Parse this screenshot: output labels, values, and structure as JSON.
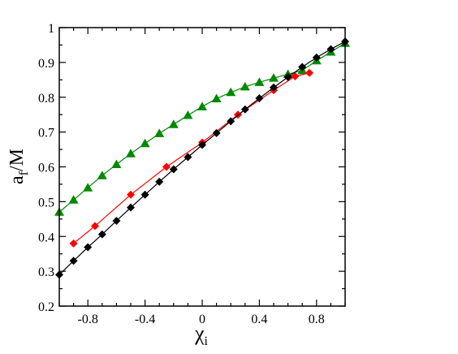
{
  "chart_data": {
    "type": "line",
    "title": "",
    "xlabel": "χ",
    "xlabel_sub": "i",
    "ylabel": "a",
    "ylabel_sub": "f",
    "ylabel_suffix": "/M",
    "xlim": [
      -1,
      1
    ],
    "ylim": [
      0.2,
      1
    ],
    "xticks": [
      -0.8,
      -0.4,
      0,
      0.4,
      0.8
    ],
    "xtick_labels": [
      "-0.8",
      "-0.4",
      "0",
      "0.4",
      "0.8"
    ],
    "yticks": [
      0.2,
      0.3,
      0.4,
      0.5,
      0.6,
      0.7,
      0.8,
      0.9,
      1.0
    ],
    "ytick_labels": [
      "0.2",
      "0.3",
      "0.4",
      "0.5",
      "0.6",
      "0.7",
      "0.8",
      "0.9",
      "1"
    ],
    "grid": false,
    "legend": "none",
    "series": [
      {
        "color": "#008800",
        "marker": "triangle",
        "x": [
          -1.0,
          -0.9,
          -0.8,
          -0.7,
          -0.6,
          -0.5,
          -0.4,
          -0.3,
          -0.2,
          -0.1,
          0.0,
          0.1,
          0.2,
          0.3,
          0.4,
          0.5,
          0.6,
          0.7,
          0.8,
          0.9,
          1.0
        ],
        "y": [
          0.47,
          0.505,
          0.54,
          0.575,
          0.607,
          0.638,
          0.667,
          0.696,
          0.722,
          0.748,
          0.773,
          0.796,
          0.814,
          0.83,
          0.843,
          0.855,
          0.866,
          0.877,
          0.905,
          0.93,
          0.955
        ]
      },
      {
        "color": "#ff0000",
        "marker": "diamond",
        "x": [
          -0.9,
          -0.75,
          -0.5,
          -0.25,
          0.0,
          0.25,
          0.5,
          0.65,
          0.75
        ],
        "y": [
          0.38,
          0.43,
          0.52,
          0.6,
          0.67,
          0.75,
          0.82,
          0.86,
          0.87
        ]
      },
      {
        "color": "#000000",
        "marker": "diamond",
        "x": [
          -1.0,
          -0.9,
          -0.8,
          -0.7,
          -0.6,
          -0.5,
          -0.4,
          -0.3,
          -0.2,
          -0.1,
          0.0,
          0.1,
          0.2,
          0.3,
          0.4,
          0.5,
          0.6,
          0.7,
          0.8,
          0.9,
          1.0
        ],
        "y": [
          0.29,
          0.33,
          0.369,
          0.406,
          0.445,
          0.483,
          0.52,
          0.557,
          0.593,
          0.628,
          0.663,
          0.697,
          0.731,
          0.765,
          0.797,
          0.828,
          0.858,
          0.887,
          0.914,
          0.938,
          0.96
        ]
      }
    ]
  }
}
